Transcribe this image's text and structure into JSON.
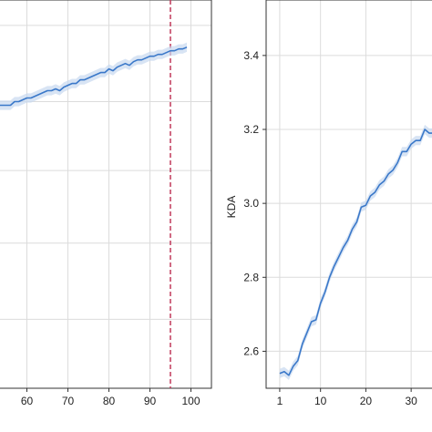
{
  "chart_data": [
    {
      "type": "line",
      "xlabel": "",
      "ylabel": "",
      "xlim": [
        53,
        105
      ],
      "ylim": [
        0,
        1.07
      ],
      "xticks": [
        60,
        70,
        80,
        90,
        100
      ],
      "xtick_labels": [
        "60",
        "70",
        "80",
        "90",
        "100"
      ],
      "grid": true,
      "vline": {
        "x": 95,
        "color": "#c0395a",
        "style": "dashed"
      },
      "line_color": "#3a78c9",
      "band_color": "#c8d9f0",
      "series": [
        {
          "x": [
            53,
            54,
            55,
            56,
            57,
            58,
            59,
            60,
            61,
            62,
            63,
            64,
            65,
            66,
            67,
            68,
            69,
            70,
            71,
            72,
            73,
            74,
            75,
            76,
            77,
            78,
            79,
            80,
            81,
            82,
            83,
            84,
            85,
            86,
            87,
            88,
            89,
            90,
            91,
            92,
            93,
            94,
            95,
            96,
            97,
            98,
            99
          ],
          "y": [
            0.78,
            0.78,
            0.78,
            0.78,
            0.79,
            0.79,
            0.795,
            0.8,
            0.8,
            0.805,
            0.81,
            0.815,
            0.82,
            0.82,
            0.825,
            0.82,
            0.83,
            0.835,
            0.84,
            0.84,
            0.85,
            0.85,
            0.855,
            0.86,
            0.865,
            0.87,
            0.87,
            0.88,
            0.875,
            0.885,
            0.89,
            0.895,
            0.89,
            0.9,
            0.905,
            0.905,
            0.91,
            0.915,
            0.915,
            0.92,
            0.92,
            0.925,
            0.93,
            0.93,
            0.935,
            0.935,
            0.94
          ]
        }
      ]
    },
    {
      "type": "line",
      "xlabel": "",
      "ylabel": "KDA",
      "xlim": [
        -2,
        35
      ],
      "ylim": [
        2.5,
        3.55
      ],
      "xticks": [
        1,
        10,
        20,
        30
      ],
      "xtick_labels": [
        "1",
        "10",
        "20",
        "30"
      ],
      "yticks": [
        2.6,
        2.8,
        3.0,
        3.2,
        3.4
      ],
      "ytick_labels": [
        "2.6",
        "2.8",
        "3.0",
        "3.2",
        "3.4"
      ],
      "grid": true,
      "line_color": "#3a78c9",
      "band_color": "#c8d9f0",
      "series": [
        {
          "x": [
            1,
            2,
            3,
            4,
            5,
            6,
            7,
            8,
            9,
            10,
            11,
            12,
            13,
            14,
            15,
            16,
            17,
            18,
            19,
            20,
            21,
            22,
            23,
            24,
            25,
            26,
            27,
            28,
            29,
            30,
            31,
            32,
            33,
            34,
            35
          ],
          "y": [
            2.54,
            2.545,
            2.535,
            2.56,
            2.575,
            2.62,
            2.65,
            2.68,
            2.685,
            2.73,
            2.76,
            2.8,
            2.83,
            2.855,
            2.88,
            2.9,
            2.93,
            2.95,
            2.99,
            2.995,
            3.02,
            3.03,
            3.05,
            3.06,
            3.08,
            3.09,
            3.11,
            3.14,
            3.14,
            3.16,
            3.17,
            3.17,
            3.2,
            3.19,
            3.19
          ]
        }
      ]
    }
  ]
}
